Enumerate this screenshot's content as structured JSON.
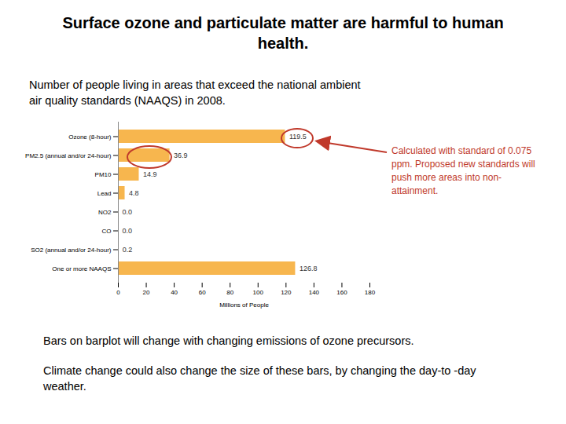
{
  "chart_data": {
    "type": "bar",
    "orientation": "horizontal",
    "title": "Surface ozone and particulate matter are harmful to human health.",
    "subtitle": "Number of people living in areas that exceed the national ambient air quality standards (NAAQS) in 2008.",
    "categories": [
      "Ozone (8-hour)",
      "PM2.5 (annual and/or 24-hour)",
      "PM10",
      "Lead",
      "NO2",
      "CO",
      "SO2 (annual and/or 24-hour)",
      "One or more NAAQS"
    ],
    "values": [
      119.5,
      36.9,
      14.9,
      4.8,
      0.0,
      0.0,
      0.2,
      126.8
    ],
    "value_labels": [
      "119.5",
      "36.9",
      "14.9",
      "4.8",
      "0.0",
      "0.0",
      "0.2",
      "126.8"
    ],
    "data_labels": true,
    "color": "#f7b64e",
    "xlabel": "Millions of People",
    "xlim": [
      0,
      180
    ],
    "xticks": [
      0,
      20,
      40,
      60,
      80,
      100,
      120,
      140,
      160,
      180
    ],
    "grid": false,
    "annotations": [
      {
        "text": "Calculated with standard of 0.075 ppm. Proposed new standards will push more areas into non-attainment.",
        "color": "#c0392b"
      },
      {
        "text": "Bars on barplot will change with changing emissions of ozone precursors."
      },
      {
        "text": "Climate change could also change the size of these bars, by changing the day-to -day weather."
      }
    ]
  }
}
